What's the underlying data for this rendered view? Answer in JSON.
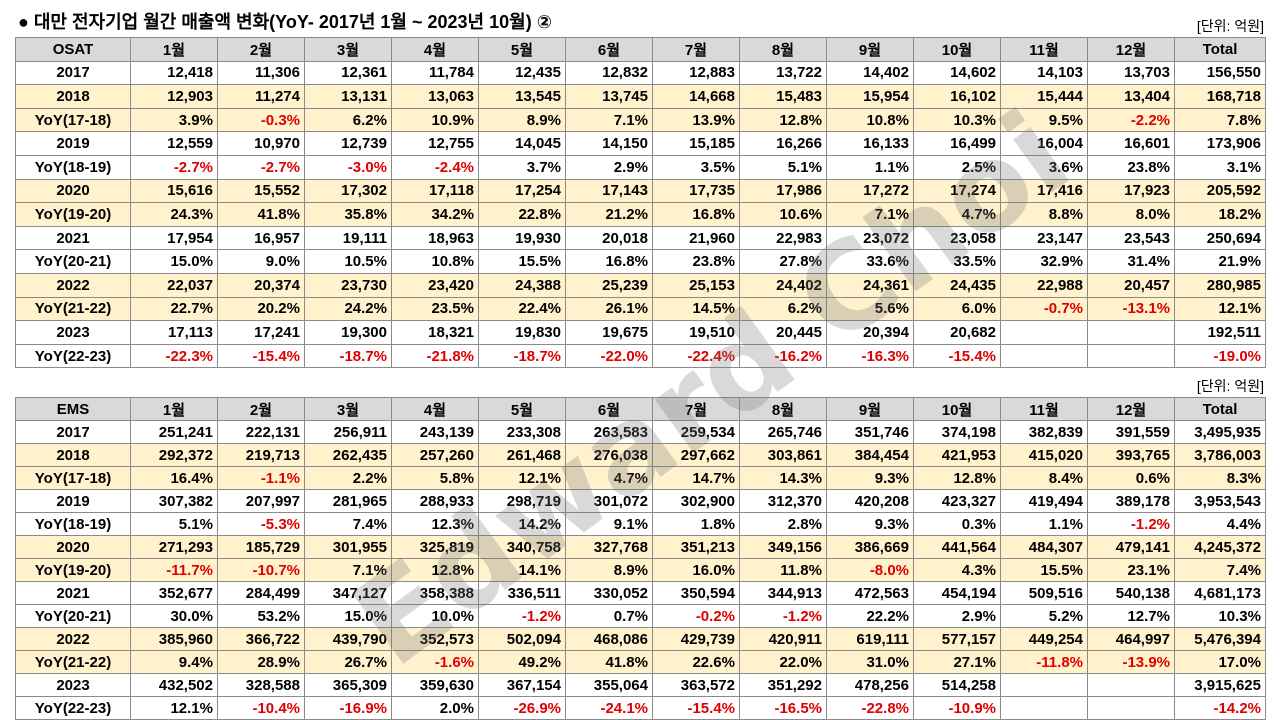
{
  "title": "● 대만 전자기업 월간 매출액 변화(YoY- 2017년 1월 ~  2023년 10월) ②",
  "watermark": "Edward Choi",
  "tables": [
    {
      "unit": "[단위: 억원]",
      "header": [
        "OSAT",
        "1월",
        "2월",
        "3월",
        "4월",
        "5월",
        "6월",
        "7월",
        "8월",
        "9월",
        "10월",
        "11월",
        "12월",
        "Total"
      ],
      "rows": [
        [
          "2017",
          "12,418",
          "11,306",
          "12,361",
          "11,784",
          "12,435",
          "12,832",
          "12,883",
          "13,722",
          "14,402",
          "14,602",
          "14,103",
          "13,703",
          "156,550"
        ],
        [
          "2018",
          "12,903",
          "11,274",
          "13,131",
          "13,063",
          "13,545",
          "13,745",
          "14,668",
          "15,483",
          "15,954",
          "16,102",
          "15,444",
          "13,404",
          "168,718"
        ],
        [
          "YoY(17-18)",
          "3.9%",
          "-0.3%",
          "6.2%",
          "10.9%",
          "8.9%",
          "7.1%",
          "13.9%",
          "12.8%",
          "10.8%",
          "10.3%",
          "9.5%",
          "-2.2%",
          "7.8%"
        ],
        [
          "2019",
          "12,559",
          "10,970",
          "12,739",
          "12,755",
          "14,045",
          "14,150",
          "15,185",
          "16,266",
          "16,133",
          "16,499",
          "16,004",
          "16,601",
          "173,906"
        ],
        [
          "YoY(18-19)",
          "-2.7%",
          "-2.7%",
          "-3.0%",
          "-2.4%",
          "3.7%",
          "2.9%",
          "3.5%",
          "5.1%",
          "1.1%",
          "2.5%",
          "3.6%",
          "23.8%",
          "3.1%"
        ],
        [
          "2020",
          "15,616",
          "15,552",
          "17,302",
          "17,118",
          "17,254",
          "17,143",
          "17,735",
          "17,986",
          "17,272",
          "17,274",
          "17,416",
          "17,923",
          "205,592"
        ],
        [
          "YoY(19-20)",
          "24.3%",
          "41.8%",
          "35.8%",
          "34.2%",
          "22.8%",
          "21.2%",
          "16.8%",
          "10.6%",
          "7.1%",
          "4.7%",
          "8.8%",
          "8.0%",
          "18.2%"
        ],
        [
          "2021",
          "17,954",
          "16,957",
          "19,111",
          "18,963",
          "19,930",
          "20,018",
          "21,960",
          "22,983",
          "23,072",
          "23,058",
          "23,147",
          "23,543",
          "250,694"
        ],
        [
          "YoY(20-21)",
          "15.0%",
          "9.0%",
          "10.5%",
          "10.8%",
          "15.5%",
          "16.8%",
          "23.8%",
          "27.8%",
          "33.6%",
          "33.5%",
          "32.9%",
          "31.4%",
          "21.9%"
        ],
        [
          "2022",
          "22,037",
          "20,374",
          "23,730",
          "23,420",
          "24,388",
          "25,239",
          "25,153",
          "24,402",
          "24,361",
          "24,435",
          "22,988",
          "20,457",
          "280,985"
        ],
        [
          "YoY(21-22)",
          "22.7%",
          "20.2%",
          "24.2%",
          "23.5%",
          "22.4%",
          "26.1%",
          "14.5%",
          "6.2%",
          "5.6%",
          "6.0%",
          "-0.7%",
          "-13.1%",
          "12.1%"
        ],
        [
          "2023",
          "17,113",
          "17,241",
          "19,300",
          "18,321",
          "19,830",
          "19,675",
          "19,510",
          "20,445",
          "20,394",
          "20,682",
          null,
          null,
          "192,511"
        ],
        [
          "YoY(22-23)",
          "-22.3%",
          "-15.4%",
          "-18.7%",
          "-21.8%",
          "-18.7%",
          "-22.0%",
          "-22.4%",
          "-16.2%",
          "-16.3%",
          "-15.4%",
          null,
          null,
          "-19.0%"
        ]
      ]
    },
    {
      "unit": "[단위: 억원]",
      "header": [
        "EMS",
        "1월",
        "2월",
        "3월",
        "4월",
        "5월",
        "6월",
        "7월",
        "8월",
        "9월",
        "10월",
        "11월",
        "12월",
        "Total"
      ],
      "rows": [
        [
          "2017",
          "251,241",
          "222,131",
          "256,911",
          "243,139",
          "233,308",
          "263,583",
          "259,534",
          "265,746",
          "351,746",
          "374,198",
          "382,839",
          "391,559",
          "3,495,935"
        ],
        [
          "2018",
          "292,372",
          "219,713",
          "262,435",
          "257,260",
          "261,468",
          "276,038",
          "297,662",
          "303,861",
          "384,454",
          "421,953",
          "415,020",
          "393,765",
          "3,786,003"
        ],
        [
          "YoY(17-18)",
          "16.4%",
          "-1.1%",
          "2.2%",
          "5.8%",
          "12.1%",
          "4.7%",
          "14.7%",
          "14.3%",
          "9.3%",
          "12.8%",
          "8.4%",
          "0.6%",
          "8.3%"
        ],
        [
          "2019",
          "307,382",
          "207,997",
          "281,965",
          "288,933",
          "298,719",
          "301,072",
          "302,900",
          "312,370",
          "420,208",
          "423,327",
          "419,494",
          "389,178",
          "3,953,543"
        ],
        [
          "YoY(18-19)",
          "5.1%",
          "-5.3%",
          "7.4%",
          "12.3%",
          "14.2%",
          "9.1%",
          "1.8%",
          "2.8%",
          "9.3%",
          "0.3%",
          "1.1%",
          "-1.2%",
          "4.4%"
        ],
        [
          "2020",
          "271,293",
          "185,729",
          "301,955",
          "325,819",
          "340,758",
          "327,768",
          "351,213",
          "349,156",
          "386,669",
          "441,564",
          "484,307",
          "479,141",
          "4,245,372"
        ],
        [
          "YoY(19-20)",
          "-11.7%",
          "-10.7%",
          "7.1%",
          "12.8%",
          "14.1%",
          "8.9%",
          "16.0%",
          "11.8%",
          "-8.0%",
          "4.3%",
          "15.5%",
          "23.1%",
          "7.4%"
        ],
        [
          "2021",
          "352,677",
          "284,499",
          "347,127",
          "358,388",
          "336,511",
          "330,052",
          "350,594",
          "344,913",
          "472,563",
          "454,194",
          "509,516",
          "540,138",
          "4,681,173"
        ],
        [
          "YoY(20-21)",
          "30.0%",
          "53.2%",
          "15.0%",
          "10.0%",
          "-1.2%",
          "0.7%",
          "-0.2%",
          "-1.2%",
          "22.2%",
          "2.9%",
          "5.2%",
          "12.7%",
          "10.3%"
        ],
        [
          "2022",
          "385,960",
          "366,722",
          "439,790",
          "352,573",
          "502,094",
          "468,086",
          "429,739",
          "420,911",
          "619,111",
          "577,157",
          "449,254",
          "464,997",
          "5,476,394"
        ],
        [
          "YoY(21-22)",
          "9.4%",
          "28.9%",
          "26.7%",
          "-1.6%",
          "49.2%",
          "41.8%",
          "22.6%",
          "22.0%",
          "31.0%",
          "27.1%",
          "-11.8%",
          "-13.9%",
          "17.0%"
        ],
        [
          "2023",
          "432,502",
          "328,588",
          "365,309",
          "359,630",
          "367,154",
          "355,064",
          "363,572",
          "351,292",
          "478,256",
          "514,258",
          null,
          null,
          "3,915,625"
        ],
        [
          "YoY(22-23)",
          "12.1%",
          "-10.4%",
          "-16.9%",
          "2.0%",
          "-26.9%",
          "-24.1%",
          "-15.4%",
          "-16.5%",
          "-22.8%",
          "-10.9%",
          null,
          null,
          "-14.2%"
        ]
      ]
    }
  ]
}
